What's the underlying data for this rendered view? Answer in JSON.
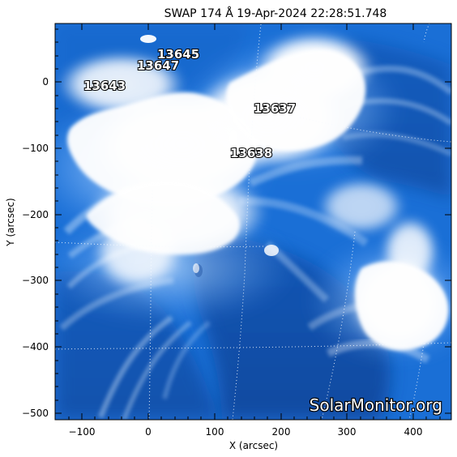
{
  "title": "SWAP 174 Å 19-Apr-2024 22:28:51.748",
  "x_axis": {
    "label": "X (arcsec)",
    "range": [
      -140,
      458
    ],
    "ticks": [
      -100,
      0,
      100,
      200,
      300,
      400
    ],
    "tick_labels": [
      "−100",
      "0",
      "100",
      "200",
      "300",
      "400"
    ]
  },
  "y_axis": {
    "label": "Y (arcsec)",
    "range": [
      -518,
      88
    ],
    "ticks": [
      0,
      -100,
      -200,
      -300,
      -400,
      -500
    ],
    "tick_labels": [
      "0",
      "−100",
      "−200",
      "−300",
      "−400",
      "−500"
    ]
  },
  "regions": [
    {
      "label": "13645",
      "x": 50,
      "y": 43
    },
    {
      "label": "13647",
      "x": 18,
      "y": 25
    },
    {
      "label": "13643",
      "x": -95,
      "y": -3
    },
    {
      "label": "13637",
      "x": 198,
      "y": -35
    },
    {
      "label": "13638",
      "x": 178,
      "y": -105
    }
  ],
  "watermark": "SolarMonitor.org",
  "colors": {
    "background": "#1a6fd6",
    "dark_blue": "#0b3f95",
    "mid_blue": "#2c7be8",
    "light_blue": "#8fc0ff",
    "saturated": "#ffffff",
    "axis": "#000000"
  }
}
